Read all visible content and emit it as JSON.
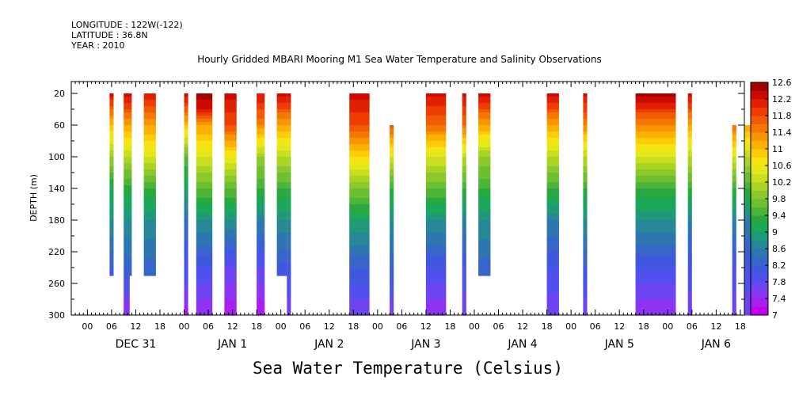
{
  "header": {
    "longitude": "LONGITUDE : 122W(-122)",
    "latitude": "LATITUDE : 36.8N",
    "year": "YEAR : 2010",
    "title": "Hourly Gridded MBARI Mooring M1 Sea Water Temperature and Salinity Observations"
  },
  "chart_data": {
    "type": "heatmap",
    "title": "Hourly Gridded MBARI Mooring M1 Sea Water Temperature and Salinity Observations",
    "xlabel": "",
    "ylabel": "DEPTH (m)",
    "colorbar_title": "Sea Water Temperature (Celsius)",
    "x_unit": "hours since DEC 31 00:00",
    "xlim": [
      -4,
      163
    ],
    "ylim": [
      300,
      5
    ],
    "y_ticks": [
      20,
      60,
      100,
      140,
      180,
      220,
      260,
      300
    ],
    "x_hour_ticks": [
      {
        "h": 0,
        "label": "00"
      },
      {
        "h": 6,
        "label": "06"
      },
      {
        "h": 12,
        "label": "12"
      },
      {
        "h": 18,
        "label": "18"
      },
      {
        "h": 24,
        "label": "00"
      },
      {
        "h": 30,
        "label": "06"
      },
      {
        "h": 36,
        "label": "12"
      },
      {
        "h": 42,
        "label": "18"
      },
      {
        "h": 48,
        "label": "00"
      },
      {
        "h": 54,
        "label": "06"
      },
      {
        "h": 60,
        "label": "12"
      },
      {
        "h": 66,
        "label": "18"
      },
      {
        "h": 72,
        "label": "00"
      },
      {
        "h": 78,
        "label": "06"
      },
      {
        "h": 84,
        "label": "12"
      },
      {
        "h": 90,
        "label": "18"
      },
      {
        "h": 96,
        "label": "00"
      },
      {
        "h": 102,
        "label": "06"
      },
      {
        "h": 108,
        "label": "12"
      },
      {
        "h": 114,
        "label": "18"
      },
      {
        "h": 120,
        "label": "00"
      },
      {
        "h": 126,
        "label": "06"
      },
      {
        "h": 132,
        "label": "12"
      },
      {
        "h": 138,
        "label": "18"
      },
      {
        "h": 144,
        "label": "00"
      },
      {
        "h": 150,
        "label": "06"
      },
      {
        "h": 156,
        "label": "12"
      },
      {
        "h": 162,
        "label": "18"
      }
    ],
    "x_day_labels": [
      {
        "h": 12,
        "label": "DEC 31"
      },
      {
        "h": 36,
        "label": "JAN  1"
      },
      {
        "h": 60,
        "label": "JAN  2"
      },
      {
        "h": 84,
        "label": "JAN  3"
      },
      {
        "h": 108,
        "label": "JAN  4"
      },
      {
        "h": 132,
        "label": "JAN  5"
      },
      {
        "h": 156,
        "label": "JAN  6"
      }
    ],
    "colorbar": {
      "levels": [
        7,
        7.2,
        7.4,
        7.6,
        7.8,
        8,
        8.2,
        8.4,
        8.6,
        8.8,
        9,
        9.2,
        9.4,
        9.6,
        9.8,
        10,
        10.2,
        10.4,
        10.6,
        10.8,
        11,
        11.2,
        11.4,
        11.6,
        11.8,
        12,
        12.2,
        12.4,
        12.6
      ],
      "labels": [
        "7",
        "7.4",
        "7.8",
        "8.2",
        "8.6",
        "9",
        "9.4",
        "9.8",
        "10.2",
        "10.6",
        "11",
        "11.4",
        "11.8",
        "12.2",
        "12.6"
      ],
      "colors": [
        "#c400f0",
        "#a820f0",
        "#8c34f2",
        "#6e44f0",
        "#5050ee",
        "#4058de",
        "#3666c8",
        "#2e76b0",
        "#268896",
        "#1e9a78",
        "#1aa858",
        "#2aa840",
        "#4eb438",
        "#6cc030",
        "#8cc82a",
        "#aad424",
        "#c8de1e",
        "#e4e818",
        "#f6e410",
        "#fccc08",
        "#fcb000",
        "#f89400",
        "#f47800",
        "#f05a00",
        "#ec3c00",
        "#e02000",
        "#cc0a00",
        "#a40000"
      ]
    },
    "columns": [
      {
        "x0": 5.5,
        "x1": 6.5,
        "depth_max": 250,
        "profile": [
          [
            20,
            12.3
          ],
          [
            60,
            11.0
          ],
          [
            100,
            10.0
          ],
          [
            140,
            9.2
          ],
          [
            180,
            8.8
          ],
          [
            250,
            8.1
          ]
        ]
      },
      {
        "x0": 9,
        "x1": 10.5,
        "depth_max": 300,
        "profile": [
          [
            20,
            12.3
          ],
          [
            60,
            11.2
          ],
          [
            100,
            10.2
          ],
          [
            140,
            9.3
          ],
          [
            180,
            8.8
          ],
          [
            240,
            8.2
          ],
          [
            300,
            7.4
          ]
        ]
      },
      {
        "x0": 10,
        "x1": 11,
        "depth_max": 250,
        "profile": [
          [
            20,
            12.3
          ],
          [
            60,
            11.2
          ],
          [
            100,
            10.2
          ],
          [
            140,
            9.3
          ],
          [
            180,
            8.8
          ],
          [
            250,
            8.2
          ]
        ]
      },
      {
        "x0": 14,
        "x1": 17,
        "depth_max": 250,
        "profile": [
          [
            20,
            12.2
          ],
          [
            60,
            11.2
          ],
          [
            100,
            10.4
          ],
          [
            140,
            9.4
          ],
          [
            180,
            8.8
          ],
          [
            250,
            8.2
          ]
        ]
      },
      {
        "x0": 24,
        "x1": 25,
        "depth_max": 300,
        "profile": [
          [
            20,
            12.4
          ],
          [
            60,
            11.0
          ],
          [
            100,
            9.6
          ],
          [
            140,
            9.0
          ],
          [
            180,
            8.4
          ],
          [
            260,
            7.8
          ],
          [
            300,
            7.2
          ]
        ]
      },
      {
        "x0": 27,
        "x1": 31,
        "depth_max": 300,
        "profile": [
          [
            20,
            12.6
          ],
          [
            40,
            12.2
          ],
          [
            60,
            11.2
          ],
          [
            100,
            10.4
          ],
          [
            140,
            9.6
          ],
          [
            180,
            8.8
          ],
          [
            240,
            8.0
          ],
          [
            300,
            7.4
          ]
        ]
      },
      {
        "x0": 34,
        "x1": 37,
        "depth_max": 300,
        "profile": [
          [
            20,
            12.3
          ],
          [
            60,
            11.8
          ],
          [
            100,
            10.6
          ],
          [
            140,
            9.6
          ],
          [
            180,
            8.8
          ],
          [
            240,
            7.8
          ],
          [
            300,
            7.2
          ]
        ]
      },
      {
        "x0": 42,
        "x1": 44,
        "depth_max": 300,
        "profile": [
          [
            20,
            12.2
          ],
          [
            60,
            11.4
          ],
          [
            100,
            10.0
          ],
          [
            140,
            9.4
          ],
          [
            180,
            8.6
          ],
          [
            240,
            7.8
          ],
          [
            300,
            7.2
          ]
        ]
      },
      {
        "x0": 47,
        "x1": 49.5,
        "depth_max": 250,
        "profile": [
          [
            20,
            12.3
          ],
          [
            60,
            11.2
          ],
          [
            100,
            10.2
          ],
          [
            140,
            9.4
          ],
          [
            180,
            8.8
          ],
          [
            250,
            8.0
          ]
        ]
      },
      {
        "x0": 49.5,
        "x1": 50.5,
        "depth_max": 300,
        "profile": [
          [
            20,
            12.3
          ],
          [
            60,
            11.2
          ],
          [
            100,
            10.2
          ],
          [
            140,
            9.4
          ],
          [
            180,
            8.8
          ],
          [
            250,
            8.0
          ],
          [
            300,
            7.6
          ]
        ]
      },
      {
        "x0": 65,
        "x1": 70,
        "depth_max": 300,
        "profile": [
          [
            20,
            12.3
          ],
          [
            60,
            11.8
          ],
          [
            100,
            10.8
          ],
          [
            140,
            9.8
          ],
          [
            180,
            9.0
          ],
          [
            240,
            8.2
          ],
          [
            300,
            7.6
          ]
        ]
      },
      {
        "x0": 75,
        "x1": 76,
        "depth_max": 300,
        "profile": [
          [
            60,
            11.8
          ],
          [
            100,
            10.4
          ],
          [
            140,
            9.4
          ],
          [
            180,
            8.8
          ],
          [
            240,
            8.2
          ],
          [
            300,
            7.6
          ]
        ]
      },
      {
        "x0": 84,
        "x1": 89,
        "depth_max": 300,
        "profile": [
          [
            20,
            12.3
          ],
          [
            60,
            11.6
          ],
          [
            100,
            10.4
          ],
          [
            140,
            9.6
          ],
          [
            180,
            8.8
          ],
          [
            240,
            8.0
          ],
          [
            300,
            7.4
          ]
        ]
      },
      {
        "x0": 93,
        "x1": 94,
        "depth_max": 300,
        "profile": [
          [
            20,
            12.3
          ],
          [
            60,
            11.6
          ],
          [
            100,
            10.2
          ],
          [
            140,
            9.4
          ],
          [
            180,
            8.6
          ],
          [
            240,
            8.0
          ],
          [
            300,
            7.6
          ]
        ]
      },
      {
        "x0": 97,
        "x1": 100,
        "depth_max": 250,
        "profile": [
          [
            20,
            12.3
          ],
          [
            60,
            11.2
          ],
          [
            100,
            10.0
          ],
          [
            140,
            9.4
          ],
          [
            180,
            8.8
          ],
          [
            250,
            8.2
          ]
        ]
      },
      {
        "x0": 114,
        "x1": 117,
        "depth_max": 300,
        "profile": [
          [
            20,
            12.3
          ],
          [
            60,
            11.2
          ],
          [
            100,
            10.2
          ],
          [
            140,
            9.4
          ],
          [
            180,
            8.6
          ],
          [
            240,
            8.0
          ],
          [
            300,
            7.6
          ]
        ]
      },
      {
        "x0": 123,
        "x1": 124,
        "depth_max": 300,
        "profile": [
          [
            20,
            12.3
          ],
          [
            60,
            11.4
          ],
          [
            100,
            10.2
          ],
          [
            140,
            9.4
          ],
          [
            180,
            8.8
          ],
          [
            240,
            8.2
          ],
          [
            300,
            7.6
          ]
        ]
      },
      {
        "x0": 136,
        "x1": 146,
        "depth_max": 300,
        "profile": [
          [
            20,
            12.5
          ],
          [
            60,
            11.4
          ],
          [
            100,
            10.4
          ],
          [
            140,
            9.4
          ],
          [
            180,
            8.8
          ],
          [
            240,
            8.0
          ],
          [
            300,
            7.4
          ]
        ]
      },
      {
        "x0": 149,
        "x1": 150,
        "depth_max": 300,
        "profile": [
          [
            20,
            12.3
          ],
          [
            60,
            11.2
          ],
          [
            100,
            10.2
          ],
          [
            140,
            9.4
          ],
          [
            180,
            8.6
          ],
          [
            240,
            8.0
          ],
          [
            300,
            7.6
          ]
        ]
      },
      {
        "x0": 160,
        "x1": 161,
        "depth_max": 300,
        "profile": [
          [
            60,
            11.6
          ],
          [
            100,
            10.4
          ],
          [
            140,
            9.4
          ],
          [
            180,
            8.6
          ],
          [
            240,
            8.0
          ],
          [
            300,
            7.6
          ]
        ]
      },
      {
        "x0": 163,
        "x1": 164.5,
        "depth_max": 300,
        "profile": [
          [
            60,
            11.2
          ],
          [
            100,
            10.2
          ],
          [
            140,
            9.4
          ],
          [
            180,
            8.6
          ],
          [
            240,
            8.0
          ],
          [
            300,
            7.6
          ]
        ]
      }
    ]
  }
}
